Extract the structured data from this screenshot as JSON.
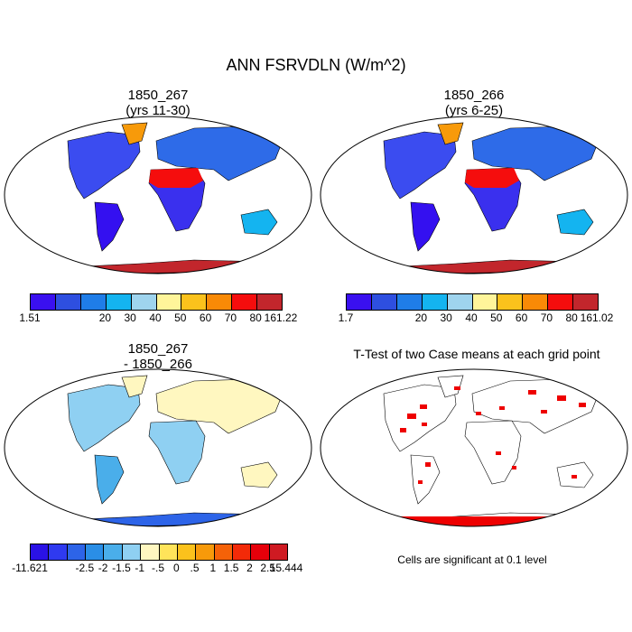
{
  "title": "ANN FSRVDLN (W/m^2)",
  "panels": [
    {
      "line1": "1850_267",
      "line2": "(yrs 11-30)",
      "colorbar": {
        "colors": [
          "#3a10f0",
          "#2e4fe0",
          "#1f7de8",
          "#14b4f0",
          "#9fd4ee",
          "#fff59a",
          "#fbc21c",
          "#f98a06",
          "#f50d0d",
          "#c2262c"
        ],
        "labels": [
          "1.51",
          "20",
          "30",
          "40",
          "50",
          "60",
          "70",
          "80",
          "161.22"
        ]
      }
    },
    {
      "line1": "1850_266",
      "line2": "(yrs 6-25)",
      "colorbar": {
        "colors": [
          "#3a10f0",
          "#2e4fe0",
          "#1f7de8",
          "#14b4f0",
          "#9fd4ee",
          "#fff59a",
          "#fbc21c",
          "#f98a06",
          "#f50d0d",
          "#c2262c"
        ],
        "labels": [
          "1.7",
          "20",
          "30",
          "40",
          "50",
          "60",
          "70",
          "80",
          "161.02"
        ]
      }
    },
    {
      "line1": "1850_267",
      "line2": "- 1850_266",
      "colorbar": {
        "colors": [
          "#2a12e6",
          "#2f3af0",
          "#2d64e8",
          "#2a8ee6",
          "#4aaeea",
          "#8fd0f2",
          "#fff7c0",
          "#ffe45a",
          "#fbc21c",
          "#f79a0a",
          "#f56208",
          "#f22a08",
          "#e6000a",
          "#cf1a22"
        ],
        "labels": [
          "-11.621",
          "-2.5",
          "-2",
          "-1.5",
          "-1",
          "-.5",
          "0",
          ".5",
          "1",
          "1.5",
          "2",
          "2.5",
          "15.444"
        ]
      }
    },
    {
      "line1": "T-Test of two Case means at each grid point",
      "note": "Cells are significant at 0.1 level"
    }
  ]
}
